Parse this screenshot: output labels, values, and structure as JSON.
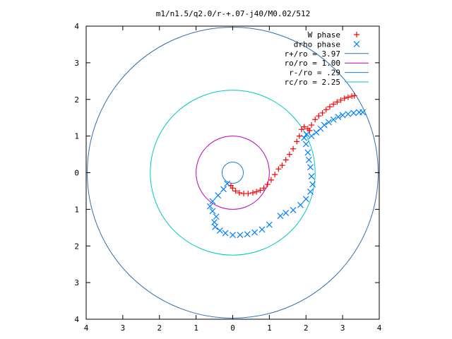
{
  "chart_data": {
    "type": "scatter",
    "title": "m1/n1.5/q2.0/r-+.07-j40/M0.02/512",
    "xlabel": "",
    "ylabel": "",
    "xlim": [
      -4,
      4
    ],
    "ylim": [
      -4,
      4
    ],
    "x_ticks": [
      -4,
      -3,
      -2,
      -1,
      0,
      1,
      2,
      3,
      4
    ],
    "y_ticks": [
      -4,
      -3,
      -2,
      -1,
      0,
      1,
      2,
      3,
      4
    ],
    "x_tick_labels": [
      "4",
      "3",
      "2",
      "1",
      "0",
      "1",
      "2",
      "3",
      "4"
    ],
    "y_tick_labels": [
      "4",
      "3",
      "2",
      "1",
      "0",
      "1",
      "2",
      "3",
      "4"
    ],
    "grid": false,
    "legend_position": "top-right",
    "legend": [
      {
        "label": "W phase",
        "marker": "plus",
        "color": "#ff0000"
      },
      {
        "label": "drho phase",
        "marker": "cross",
        "color": "#0080ff"
      },
      {
        "label": "r+/ro = 3.97",
        "line": true,
        "color": "#3070b0"
      },
      {
        "label": "ro/ro = 1.00",
        "line": true,
        "color": "#c000c0"
      },
      {
        "label": "r-/ro = .29",
        "line": true,
        "color": "#1a7fe0"
      },
      {
        "label": "rc/ro = 2.25",
        "line": true,
        "color": "#00c8c8"
      }
    ],
    "circles": [
      {
        "name": "r+/ro = 3.97",
        "radius": 3.97,
        "color": "#3070b0"
      },
      {
        "name": "ro/ro = 1.00",
        "radius": 1.0,
        "color": "#c000c0"
      },
      {
        "name": "r-/ro = .29",
        "radius": 0.29,
        "color": "#1a7fe0"
      },
      {
        "name": "rc/ro = 2.25",
        "radius": 2.25,
        "color": "#00c8c8"
      }
    ],
    "series": [
      {
        "name": "W phase",
        "marker": "plus",
        "color": "#ff0000",
        "points": [
          [
            -0.05,
            -0.35
          ],
          [
            0.0,
            -0.42
          ],
          [
            0.08,
            -0.5
          ],
          [
            0.18,
            -0.55
          ],
          [
            0.3,
            -0.57
          ],
          [
            0.42,
            -0.57
          ],
          [
            0.55,
            -0.55
          ],
          [
            0.65,
            -0.52
          ],
          [
            0.75,
            -0.48
          ],
          [
            0.85,
            -0.42
          ],
          [
            0.95,
            -0.32
          ],
          [
            1.05,
            -0.2
          ],
          [
            1.15,
            -0.05
          ],
          [
            1.25,
            0.1
          ],
          [
            1.35,
            0.2
          ],
          [
            1.45,
            0.35
          ],
          [
            1.55,
            0.5
          ],
          [
            1.65,
            0.65
          ],
          [
            1.75,
            0.85
          ],
          [
            1.82,
            1.0
          ],
          [
            1.88,
            1.18
          ],
          [
            1.95,
            1.25
          ],
          [
            2.05,
            1.2
          ],
          [
            2.1,
            1.15
          ],
          [
            2.15,
            1.3
          ],
          [
            2.25,
            1.45
          ],
          [
            2.35,
            1.55
          ],
          [
            2.45,
            1.63
          ],
          [
            2.55,
            1.72
          ],
          [
            2.65,
            1.8
          ],
          [
            2.75,
            1.87
          ],
          [
            2.85,
            1.93
          ],
          [
            2.95,
            1.98
          ],
          [
            3.05,
            2.03
          ],
          [
            3.15,
            2.06
          ],
          [
            3.25,
            2.09
          ],
          [
            3.32,
            2.1
          ]
        ]
      },
      {
        "name": "drho phase",
        "marker": "cross",
        "color": "#0080ff",
        "points": [
          [
            -0.15,
            -0.3
          ],
          [
            -0.25,
            -0.45
          ],
          [
            -0.4,
            -0.62
          ],
          [
            -0.55,
            -0.78
          ],
          [
            -0.62,
            -0.92
          ],
          [
            -0.55,
            -1.05
          ],
          [
            -0.45,
            -1.2
          ],
          [
            -0.5,
            -1.35
          ],
          [
            -0.48,
            -1.48
          ],
          [
            -0.35,
            -1.58
          ],
          [
            -0.2,
            -1.65
          ],
          [
            0.0,
            -1.7
          ],
          [
            0.2,
            -1.7
          ],
          [
            0.4,
            -1.68
          ],
          [
            0.6,
            -1.63
          ],
          [
            0.8,
            -1.55
          ],
          [
            1.0,
            -1.42
          ],
          [
            1.3,
            -1.18
          ],
          [
            1.45,
            -1.1
          ],
          [
            1.65,
            -1.02
          ],
          [
            1.85,
            -0.88
          ],
          [
            2.0,
            -0.72
          ],
          [
            2.12,
            -0.52
          ],
          [
            2.18,
            -0.32
          ],
          [
            2.15,
            -0.1
          ],
          [
            2.12,
            0.15
          ],
          [
            2.08,
            0.35
          ],
          [
            2.05,
            0.55
          ],
          [
            2.0,
            0.78
          ],
          [
            1.95,
            0.95
          ],
          [
            2.02,
            1.05
          ],
          [
            2.15,
            1.0
          ],
          [
            2.28,
            1.1
          ],
          [
            2.4,
            1.2
          ],
          [
            2.5,
            1.3
          ],
          [
            2.62,
            1.38
          ],
          [
            2.75,
            1.45
          ],
          [
            2.88,
            1.52
          ],
          [
            3.0,
            1.57
          ],
          [
            3.15,
            1.6
          ],
          [
            3.3,
            1.63
          ],
          [
            3.45,
            1.65
          ],
          [
            3.55,
            1.65
          ]
        ]
      }
    ]
  }
}
